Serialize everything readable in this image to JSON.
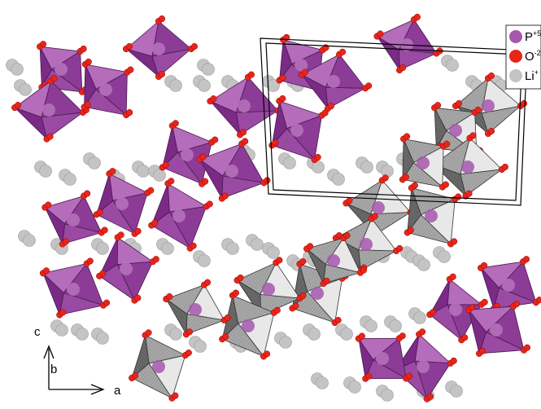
{
  "legend": [
    {
      "symbol": "P",
      "charge": "+5"
    },
    {
      "symbol": "O",
      "charge": "-2"
    },
    {
      "symbol": "Li",
      "charge": "+"
    }
  ],
  "axes": {
    "vertical": "c",
    "into_page": "b",
    "horizontal": "a"
  }
}
